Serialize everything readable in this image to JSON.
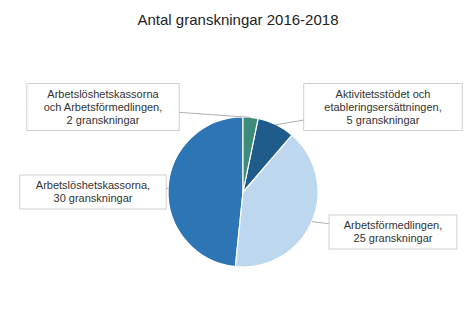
{
  "chart_data": {
    "type": "pie",
    "title": "Antal granskningar 2016-2018",
    "categories": [
      "Arbetslöshetskassorna,\n30 granskningar",
      "Arbetsförmedlingen,\n25 granskningar",
      "Aktivitetsstödet och\netableringsersättningen,\n5 granskningar",
      "Arbetslöshetskassorna\noch Arbetsförmedlingen,\n2 granskningar"
    ],
    "values": [
      30,
      25,
      5,
      2
    ],
    "colors": [
      "#2E75B6",
      "#BDD7EE",
      "#1F5C8B",
      "#3D8B7A"
    ]
  }
}
